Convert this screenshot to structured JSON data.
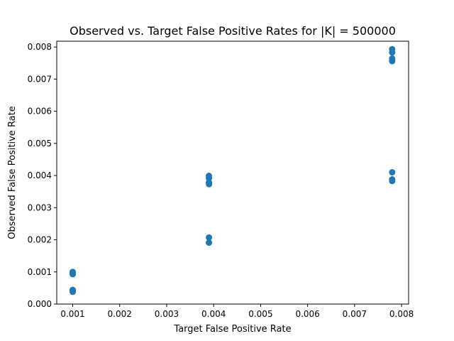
{
  "chart_data": {
    "type": "scatter",
    "title": "Observed vs. Target False Positive Rates for |K| = 500000",
    "xlabel": "Target False Positive Rate",
    "ylabel": "Observed False Positive Rate",
    "xlim": [
      0.00066,
      0.00815
    ],
    "ylim": [
      0.0,
      0.00818
    ],
    "xticks": [
      0.001,
      0.002,
      0.003,
      0.004,
      0.005,
      0.006,
      0.007,
      0.008
    ],
    "xtick_labels": [
      "0.001",
      "0.002",
      "0.003",
      "0.004",
      "0.005",
      "0.006",
      "0.007",
      "0.008"
    ],
    "yticks": [
      0.0,
      0.001,
      0.002,
      0.003,
      0.004,
      0.005,
      0.006,
      0.007,
      0.008
    ],
    "ytick_labels": [
      "0.000",
      "0.001",
      "0.002",
      "0.003",
      "0.004",
      "0.005",
      "0.006",
      "0.007",
      "0.008"
    ],
    "grid": false,
    "series": [
      {
        "color": "#1f77b4",
        "points": [
          {
            "x": 0.001,
            "y": 0.001
          },
          {
            "x": 0.001,
            "y": 0.00097
          },
          {
            "x": 0.001,
            "y": 0.00093
          },
          {
            "x": 0.001,
            "y": 0.00044
          },
          {
            "x": 0.001,
            "y": 0.00041
          },
          {
            "x": 0.001,
            "y": 0.00038
          },
          {
            "x": 0.0039,
            "y": 0.00399
          },
          {
            "x": 0.0039,
            "y": 0.00392
          },
          {
            "x": 0.0039,
            "y": 0.00378
          },
          {
            "x": 0.0039,
            "y": 0.00373
          },
          {
            "x": 0.0039,
            "y": 0.00207
          },
          {
            "x": 0.0039,
            "y": 0.00191
          },
          {
            "x": 0.0078,
            "y": 0.00793
          },
          {
            "x": 0.0078,
            "y": 0.00783
          },
          {
            "x": 0.0078,
            "y": 0.00764
          },
          {
            "x": 0.0078,
            "y": 0.00756
          },
          {
            "x": 0.0078,
            "y": 0.0041
          },
          {
            "x": 0.0078,
            "y": 0.00388
          },
          {
            "x": 0.0078,
            "y": 0.00383
          }
        ]
      }
    ]
  }
}
